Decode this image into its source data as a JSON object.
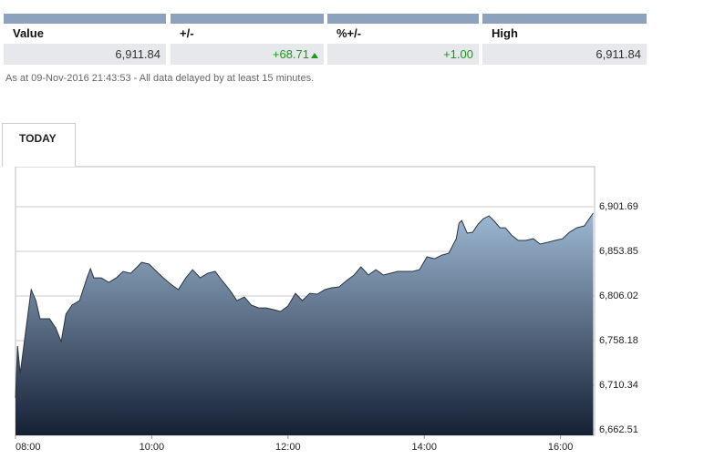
{
  "table": {
    "headers": [
      "Value",
      "+/-",
      "%+/-",
      "High"
    ],
    "values": [
      "6,911.84",
      "+68.71",
      "+1.00",
      "6,911.84"
    ]
  },
  "note": "As at 09-Nov-2016 21:43:53 - All data delayed by at least 15 minutes.",
  "tab": "TODAY",
  "chart_data": {
    "type": "area",
    "x": [
      8.0,
      8.03,
      8.07,
      8.13,
      8.23,
      8.3,
      8.36,
      8.5,
      8.59,
      8.67,
      8.74,
      8.83,
      8.94,
      9.05,
      9.1,
      9.15,
      9.26,
      9.37,
      9.48,
      9.58,
      9.69,
      9.8,
      9.85,
      9.96,
      10.07,
      10.17,
      10.28,
      10.39,
      10.5,
      10.6,
      10.71,
      10.82,
      10.93,
      11.03,
      11.14,
      11.25,
      11.36,
      11.46,
      11.57,
      11.68,
      11.79,
      11.89,
      12.0,
      12.11,
      12.21,
      12.32,
      12.43,
      12.54,
      12.64,
      12.75,
      12.86,
      12.97,
      13.07,
      13.18,
      13.29,
      13.4,
      13.5,
      13.61,
      13.72,
      13.83,
      13.93,
      14.04,
      14.15,
      14.26,
      14.36,
      14.47,
      14.51,
      14.55,
      14.63,
      14.71,
      14.79,
      14.87,
      14.95,
      15.03,
      15.11,
      15.19,
      15.28,
      15.38,
      15.49,
      15.6,
      15.7,
      15.81,
      15.92,
      16.03,
      16.13,
      16.24,
      16.35,
      16.46,
      16.48
    ],
    "values": [
      6696.7,
      6752.3,
      6723.0,
      6757.2,
      6812.9,
      6801.1,
      6781.6,
      6781.6,
      6771.8,
      6757.2,
      6786.5,
      6796.3,
      6801.1,
      6825.5,
      6835.3,
      6825.5,
      6825.5,
      6820.7,
      6825.5,
      6832.4,
      6830.4,
      6838.2,
      6842.1,
      6840.2,
      6832.4,
      6825.5,
      6818.7,
      6812.9,
      6825.5,
      6834.3,
      6825.5,
      6830.4,
      6832.4,
      6822.6,
      6812.9,
      6801.1,
      6805.0,
      6796.3,
      6793.3,
      6793.3,
      6791.4,
      6789.4,
      6795.3,
      6808.9,
      6801.1,
      6808.9,
      6808.0,
      6812.9,
      6814.8,
      6815.8,
      6822.6,
      6828.5,
      6837.3,
      6828.5,
      6834.3,
      6828.5,
      6830.4,
      6832.4,
      6832.4,
      6832.4,
      6834.3,
      6848.0,
      6846.0,
      6849.9,
      6851.9,
      6867.5,
      6884.1,
      6887.0,
      6873.4,
      6874.4,
      6883.1,
      6889.0,
      6891.9,
      6886.1,
      6879.2,
      6879.2,
      6871.4,
      6865.6,
      6865.6,
      6867.5,
      6861.7,
      6863.6,
      6865.6,
      6867.5,
      6874.4,
      6879.2,
      6881.2,
      6892.9,
      6894.9
    ],
    "xlim": [
      8,
      16.5
    ],
    "ylim": [
      6656.65,
      6944.7
    ],
    "xticks": [
      {
        "value": 8,
        "label": "08:00"
      },
      {
        "value": 10,
        "label": "10:00"
      },
      {
        "value": 12,
        "label": "12:00"
      },
      {
        "value": 14,
        "label": "14:00"
      },
      {
        "value": 16,
        "label": "16:00"
      }
    ],
    "yticks": [
      {
        "value": 6662.51,
        "label": "6,662.51"
      },
      {
        "value": 6710.34,
        "label": "6,710.34"
      },
      {
        "value": 6758.18,
        "label": "6,758.18"
      },
      {
        "value": 6806.02,
        "label": "6,806.02"
      },
      {
        "value": 6853.85,
        "label": "6,853.85"
      },
      {
        "value": 6901.69,
        "label": "6,901.69"
      }
    ],
    "grid": true,
    "line_color": "#2b3442",
    "gradient": [
      "#9db8d3",
      "#152034"
    ]
  }
}
